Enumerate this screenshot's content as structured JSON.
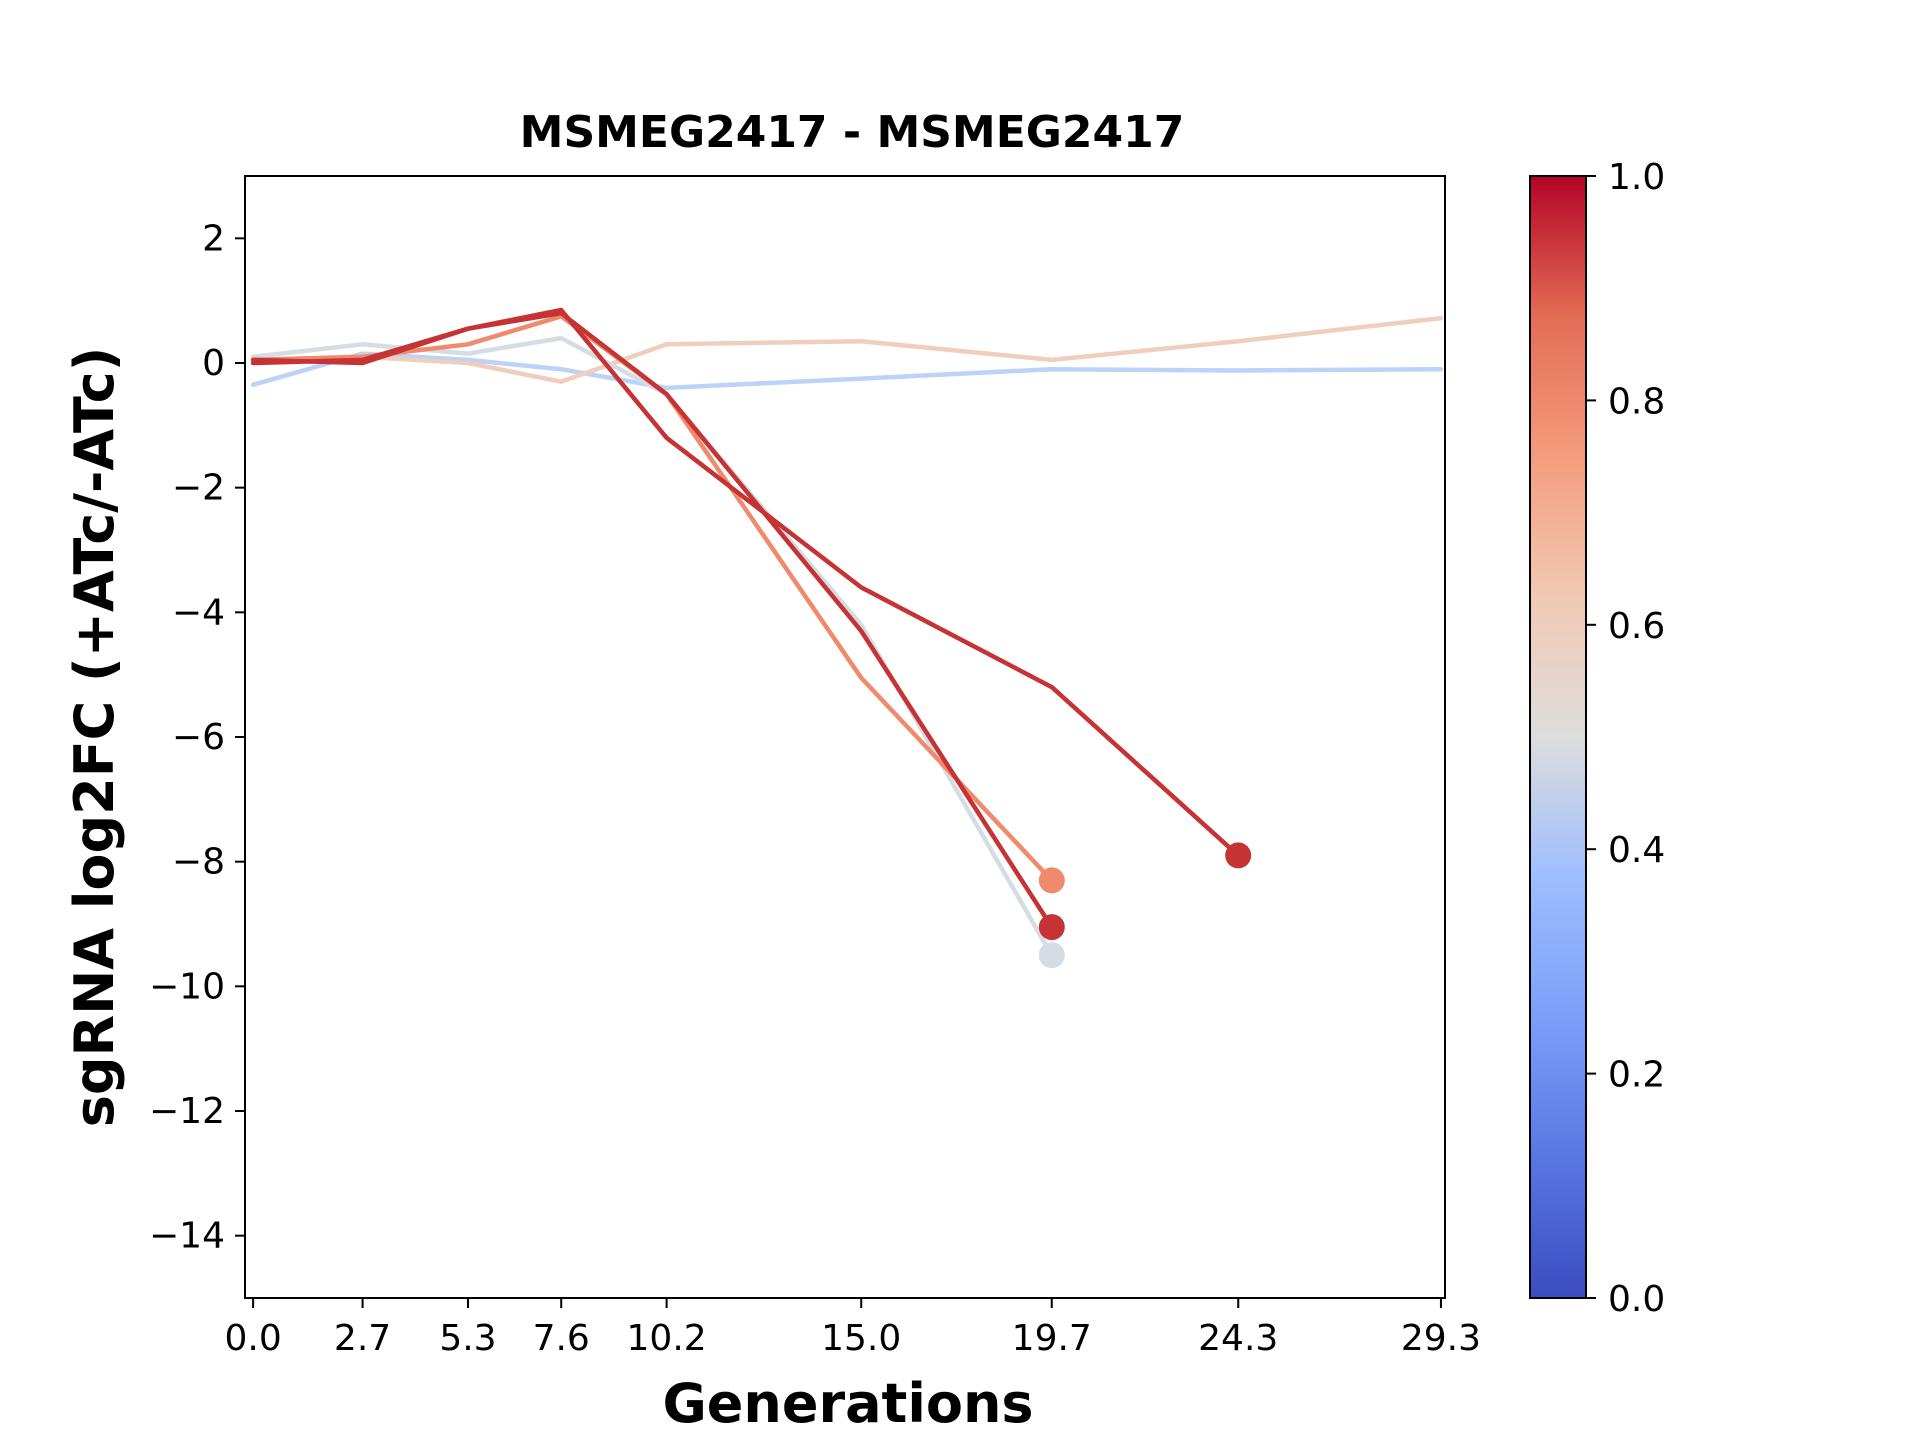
{
  "chart_data": {
    "type": "line",
    "title": "MSMEG2417 - MSMEG2417",
    "xlabel": "Generations",
    "ylabel": "sgRNA log2FC (+ATc/-ATc)",
    "x_ticks": [
      "0.0",
      "2.7",
      "5.3",
      "7.6",
      "10.2",
      "15.0",
      "19.7",
      "24.3",
      "29.3"
    ],
    "xlim": [
      -0.2,
      29.4
    ],
    "y_ticks": [
      2,
      0,
      -2,
      -4,
      -6,
      -8,
      -10,
      -12,
      -14
    ],
    "y_tick_labels": [
      "2",
      "0",
      "−2",
      "−4",
      "−6",
      "−8",
      "−10",
      "−12",
      "−14"
    ],
    "ylim": [
      -15,
      3
    ],
    "grid": false,
    "colorbar": {
      "colormap": "coolwarm",
      "range": [
        0,
        1
      ],
      "ticks": [
        "0.0",
        "0.2",
        "0.4",
        "0.6",
        "0.8",
        "1.0"
      ]
    },
    "series": [
      {
        "color_value": 0.33,
        "color": "#bcd2f7",
        "end_marker": false,
        "x": [
          0.0,
          2.7,
          5.3,
          7.6,
          10.2,
          15.0,
          19.7,
          24.3,
          29.3
        ],
        "y": [
          -0.35,
          0.15,
          0.05,
          -0.1,
          -0.4,
          -0.25,
          -0.1,
          -0.12,
          -0.1
        ]
      },
      {
        "color_value": 0.58,
        "color": "#efcebd",
        "end_marker": false,
        "x": [
          0.0,
          2.7,
          5.3,
          7.6,
          10.2,
          15.0,
          19.7,
          24.3,
          29.3
        ],
        "y": [
          0.05,
          0.1,
          0.0,
          -0.3,
          0.3,
          0.35,
          0.05,
          0.35,
          0.72
        ]
      },
      {
        "color_value": 0.47,
        "color": "#d6dce4",
        "end_marker": true,
        "x": [
          0.0,
          2.7,
          5.3,
          7.6,
          10.2,
          15.0,
          19.7
        ],
        "y": [
          0.1,
          0.3,
          0.15,
          0.4,
          -0.5,
          -4.2,
          -9.5
        ]
      },
      {
        "color_value": 0.76,
        "color": "#f08a6c",
        "end_marker": true,
        "x": [
          0.0,
          2.7,
          5.3,
          7.6,
          10.2,
          15.0,
          19.7
        ],
        "y": [
          0.05,
          0.1,
          0.3,
          0.75,
          -0.5,
          -5.05,
          -8.3
        ]
      },
      {
        "color_value": 0.94,
        "color": "#c53334",
        "end_marker": true,
        "x": [
          0.0,
          2.7,
          5.3,
          7.6,
          10.2,
          15.0,
          19.7
        ],
        "y": [
          0.0,
          0.05,
          0.55,
          0.8,
          -0.5,
          -4.3,
          -9.05
        ]
      },
      {
        "color_value": 0.95,
        "color": "#c53334",
        "end_marker": true,
        "x": [
          0.0,
          2.7,
          5.3,
          7.6,
          10.2,
          15.0,
          19.7,
          24.3
        ],
        "y": [
          0.05,
          0.0,
          0.55,
          0.85,
          -1.2,
          -3.6,
          -5.2,
          -7.9
        ]
      }
    ]
  }
}
